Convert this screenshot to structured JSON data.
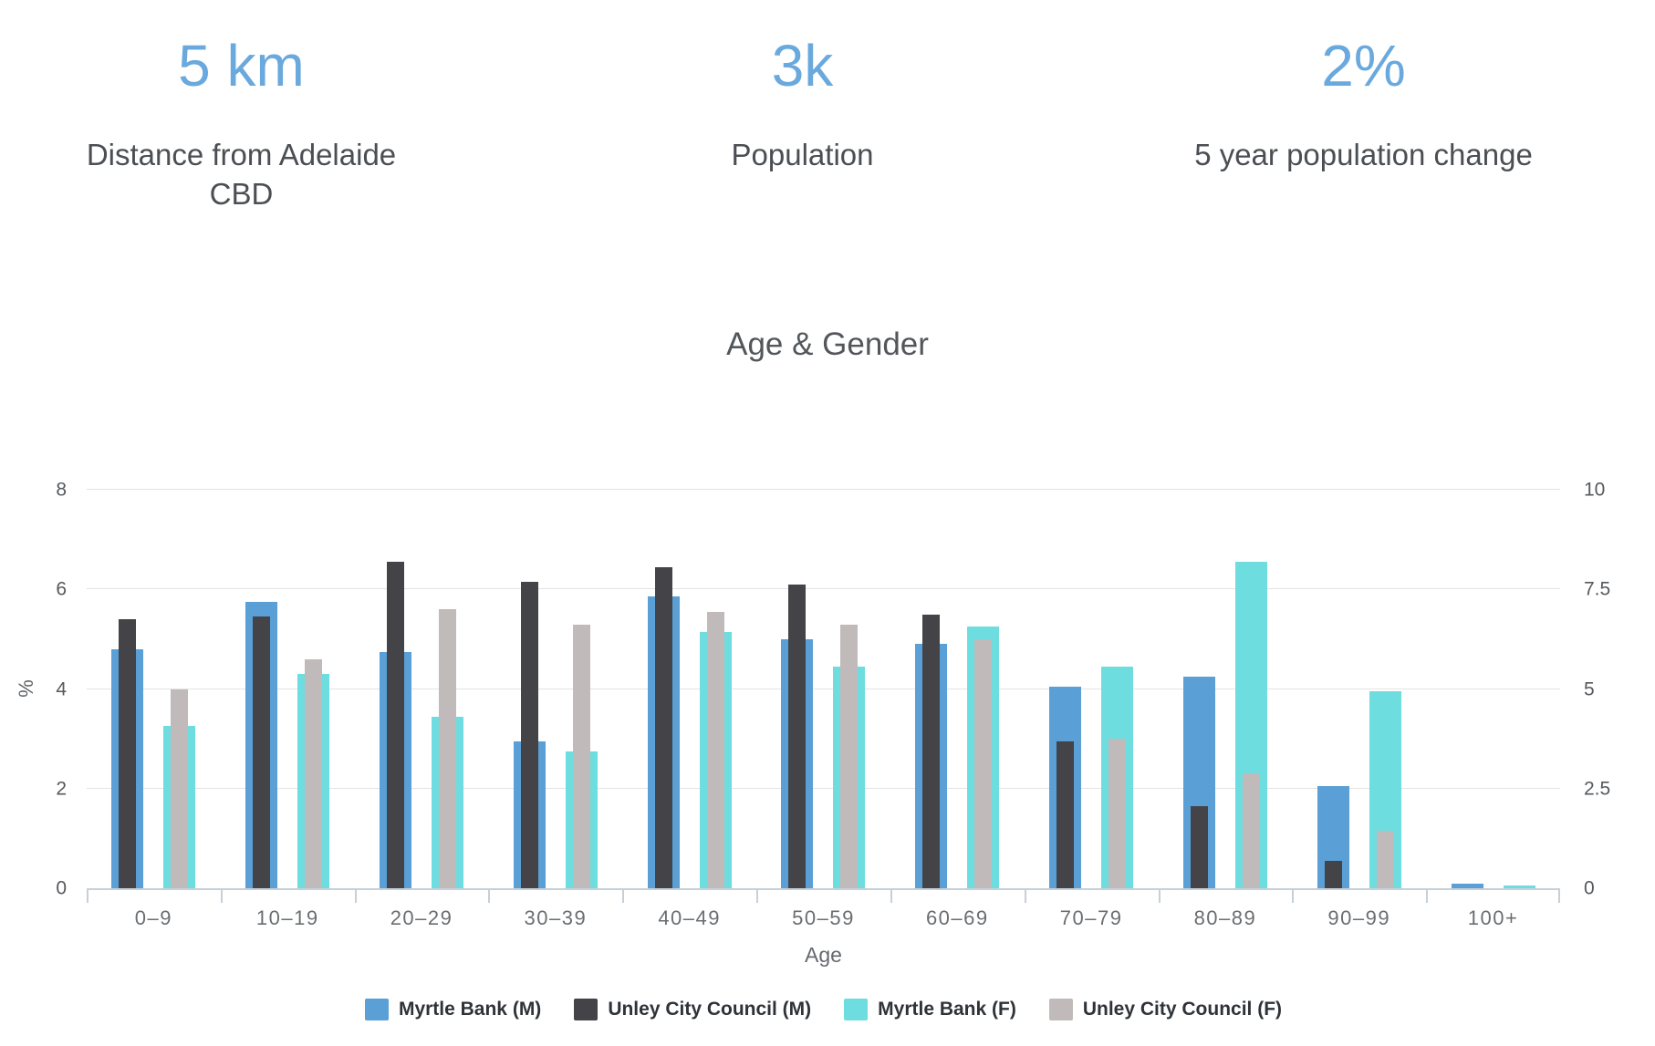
{
  "stats": [
    {
      "value": "5 km",
      "label": "Distance from Adelaide CBD"
    },
    {
      "value": "3k",
      "label": "Population"
    },
    {
      "value": "2%",
      "label": "5 year population change"
    }
  ],
  "chart_data": {
    "type": "bar",
    "title": "Age & Gender",
    "xlabel": "Age",
    "ylabel": "%",
    "categories": [
      "0–9",
      "10–19",
      "20–29",
      "30–39",
      "40–49",
      "50–59",
      "60–69",
      "70–79",
      "80–89",
      "90–99",
      "100+"
    ],
    "series": [
      {
        "name": "Myrtle Bank (M)",
        "color": "#5A9FD5",
        "bar_style": "wide",
        "values": [
          4.8,
          5.75,
          4.75,
          2.95,
          5.85,
          5.0,
          4.9,
          4.05,
          4.25,
          2.05,
          0.1
        ]
      },
      {
        "name": "Unley City Council (M)",
        "color": "#434348",
        "bar_style": "narrow-overlay",
        "values": [
          5.4,
          5.45,
          6.55,
          6.15,
          6.45,
          6.1,
          5.5,
          2.95,
          1.65,
          0.55,
          0
        ]
      },
      {
        "name": "Myrtle Bank (F)",
        "color": "#6EDDDF",
        "bar_style": "wide",
        "values": [
          3.25,
          4.3,
          3.45,
          2.75,
          5.15,
          4.45,
          5.25,
          4.45,
          6.55,
          3.95,
          0.06
        ]
      },
      {
        "name": "Unley City Council (F)",
        "color": "#C0BBBA",
        "bar_style": "narrow-overlay",
        "values": [
          4.0,
          4.6,
          5.6,
          5.3,
          5.55,
          5.3,
          5.0,
          3.0,
          2.3,
          1.15,
          0
        ]
      }
    ],
    "left_axis": {
      "ticks": [
        "0",
        "2",
        "4",
        "6",
        "8"
      ],
      "min": 0,
      "max": 8
    },
    "right_axis": {
      "ticks": [
        "0",
        "2.5",
        "5",
        "7.5",
        "10"
      ],
      "min": 0,
      "max": 10
    },
    "grid": true,
    "legend_position": "bottom"
  },
  "colors": {
    "stat_accent": "#6AA9DD",
    "text_dark": "#4B4F54",
    "axis_line": "#C6D0D9",
    "gridline": "#E3E3E3"
  }
}
